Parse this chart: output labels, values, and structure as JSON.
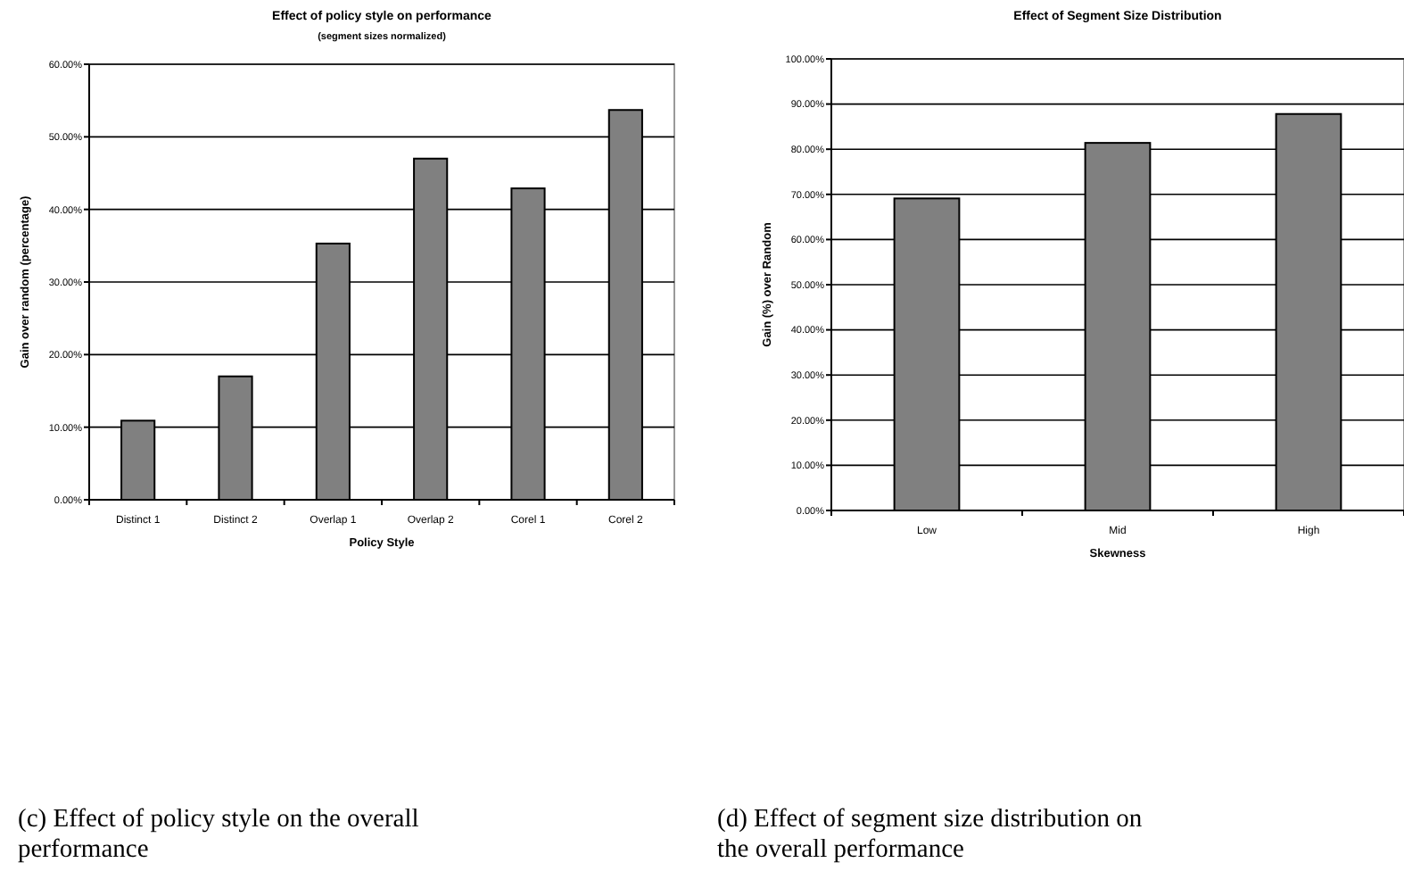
{
  "chart_data": [
    {
      "type": "bar",
      "title": "Effect of policy style on performance",
      "subtitle": "(segment sizes normalized)",
      "xlabel": "Policy Style",
      "ylabel": "Gain over random (percentage)",
      "categories": [
        "Distinct 1",
        "Distinct 2",
        "Overlap 1",
        "Overlap 2",
        "Corel 1",
        "Corel 2"
      ],
      "values": [
        10.9,
        17,
        35.3,
        47,
        42.9,
        53.7
      ],
      "color": "#808080",
      "ylim": [
        0,
        60
      ],
      "yticks": [
        {
          "value": 0,
          "label": "0.00%"
        },
        {
          "value": 10,
          "label": "10.00%"
        },
        {
          "value": 20,
          "label": "20.00%"
        },
        {
          "value": 30,
          "label": "30.00%"
        },
        {
          "value": 40,
          "label": "40.00%"
        },
        {
          "value": 50,
          "label": "50.00%"
        },
        {
          "value": 60,
          "label": "60.00%"
        }
      ],
      "grid": "y",
      "annotations": [
        "(c) Effect of policy style on the overall performance"
      ]
    },
    {
      "type": "bar",
      "title": "Effect of Segment Size Distribution",
      "xlabel": "Skewness",
      "ylabel": "Gain (%) over Random",
      "categories": [
        "Low",
        "Mid",
        "High"
      ],
      "values": [
        69.1,
        81.4,
        87.8
      ],
      "color": "#808080",
      "ylim": [
        0,
        100
      ],
      "yticks": [
        {
          "value": 0,
          "label": "0.00%"
        },
        {
          "value": 10,
          "label": "10.00%"
        },
        {
          "value": 20,
          "label": "20.00%"
        },
        {
          "value": 30,
          "label": "30.00%"
        },
        {
          "value": 40,
          "label": "40.00%"
        },
        {
          "value": 50,
          "label": "50.00%"
        },
        {
          "value": 60,
          "label": "60.00%"
        },
        {
          "value": 70,
          "label": "70.00%"
        },
        {
          "value": 80,
          "label": "80.00%"
        },
        {
          "value": 90,
          "label": "90.00%"
        },
        {
          "value": 100,
          "label": "100.00%"
        }
      ],
      "grid": "y",
      "annotations": [
        "(d) Effect of segment size distribution on the overall performance"
      ]
    }
  ]
}
